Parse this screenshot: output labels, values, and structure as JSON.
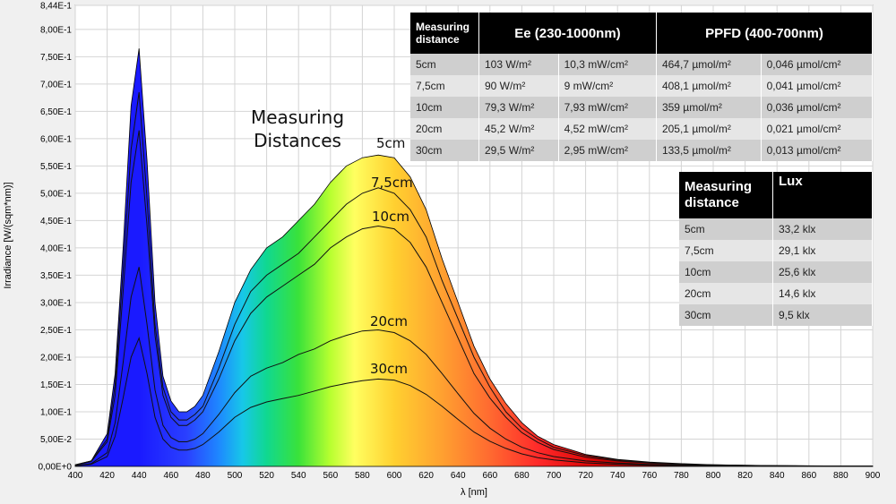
{
  "chart_data": {
    "type": "area",
    "xlabel": "λ [nm]",
    "ylabel": "Irradiance [W/(sqm*nm)]",
    "xlim": [
      400,
      900
    ],
    "ylim": [
      0,
      0.844
    ],
    "grid": true,
    "x_ticks": [
      "400",
      "420",
      "440",
      "460",
      "480",
      "500",
      "520",
      "540",
      "560",
      "580",
      "600",
      "620",
      "640",
      "660",
      "680",
      "700",
      "720",
      "740",
      "760",
      "780",
      "800",
      "820",
      "840",
      "860",
      "880",
      "900"
    ],
    "y_ticks": [
      "0,00E+0",
      "5,00E-2",
      "1,00E-1",
      "1,50E-1",
      "2,00E-1",
      "2,50E-1",
      "3,00E-1",
      "3,50E-1",
      "4,00E-1",
      "4,50E-1",
      "5,00E-1",
      "5,50E-1",
      "6,00E-1",
      "6,50E-1",
      "7,00E-1",
      "7,50E-1",
      "8,00E-1",
      "8,44E-1"
    ],
    "x": [
      400,
      410,
      420,
      425,
      430,
      435,
      440,
      445,
      450,
      455,
      460,
      465,
      470,
      475,
      480,
      490,
      500,
      510,
      520,
      530,
      540,
      550,
      560,
      570,
      580,
      590,
      600,
      610,
      620,
      630,
      640,
      650,
      660,
      670,
      680,
      690,
      700,
      720,
      740,
      760,
      780,
      800,
      820,
      840,
      860,
      880,
      900
    ],
    "series": [
      {
        "name": "5cm",
        "values": [
          0.003,
          0.01,
          0.06,
          0.17,
          0.4,
          0.66,
          0.765,
          0.56,
          0.3,
          0.165,
          0.12,
          0.1,
          0.1,
          0.11,
          0.13,
          0.21,
          0.3,
          0.36,
          0.4,
          0.42,
          0.45,
          0.48,
          0.52,
          0.55,
          0.565,
          0.57,
          0.565,
          0.53,
          0.47,
          0.38,
          0.3,
          0.22,
          0.16,
          0.115,
          0.08,
          0.055,
          0.04,
          0.022,
          0.013,
          0.008,
          0.005,
          0.003,
          0.002,
          0.0015,
          0.001,
          0.0008,
          0.0005
        ]
      },
      {
        "name": "7,5cm",
        "values": [
          0.003,
          0.01,
          0.05,
          0.15,
          0.36,
          0.58,
          0.685,
          0.49,
          0.26,
          0.145,
          0.1,
          0.085,
          0.085,
          0.095,
          0.11,
          0.18,
          0.26,
          0.32,
          0.35,
          0.37,
          0.39,
          0.42,
          0.45,
          0.48,
          0.5,
          0.51,
          0.5,
          0.47,
          0.42,
          0.34,
          0.27,
          0.2,
          0.145,
          0.1,
          0.07,
          0.05,
          0.035,
          0.02,
          0.012,
          0.007,
          0.004,
          0.003,
          0.002,
          0.0013,
          0.001,
          0.0007,
          0.0005
        ]
      },
      {
        "name": "10cm",
        "values": [
          0.002,
          0.009,
          0.045,
          0.13,
          0.32,
          0.52,
          0.615,
          0.44,
          0.24,
          0.13,
          0.09,
          0.075,
          0.075,
          0.085,
          0.1,
          0.16,
          0.23,
          0.28,
          0.31,
          0.33,
          0.35,
          0.37,
          0.4,
          0.42,
          0.435,
          0.44,
          0.435,
          0.41,
          0.365,
          0.3,
          0.235,
          0.17,
          0.125,
          0.09,
          0.062,
          0.044,
          0.031,
          0.017,
          0.01,
          0.006,
          0.0035,
          0.0025,
          0.0017,
          0.0012,
          0.0009,
          0.0006,
          0.0004
        ]
      },
      {
        "name": "20cm",
        "values": [
          0.001,
          0.005,
          0.025,
          0.08,
          0.19,
          0.31,
          0.365,
          0.26,
          0.14,
          0.075,
          0.053,
          0.045,
          0.045,
          0.05,
          0.06,
          0.095,
          0.135,
          0.165,
          0.18,
          0.19,
          0.205,
          0.215,
          0.23,
          0.24,
          0.248,
          0.25,
          0.245,
          0.23,
          0.205,
          0.17,
          0.133,
          0.097,
          0.07,
          0.05,
          0.035,
          0.025,
          0.018,
          0.01,
          0.006,
          0.0035,
          0.002,
          0.0014,
          0.001,
          0.0007,
          0.0005,
          0.0004,
          0.0003
        ]
      },
      {
        "name": "30cm",
        "values": [
          0.001,
          0.004,
          0.018,
          0.055,
          0.125,
          0.2,
          0.235,
          0.17,
          0.09,
          0.05,
          0.035,
          0.03,
          0.03,
          0.033,
          0.04,
          0.063,
          0.09,
          0.108,
          0.118,
          0.124,
          0.13,
          0.138,
          0.146,
          0.152,
          0.157,
          0.16,
          0.158,
          0.148,
          0.132,
          0.11,
          0.086,
          0.063,
          0.046,
          0.033,
          0.023,
          0.016,
          0.012,
          0.0065,
          0.004,
          0.0023,
          0.0013,
          0.0009,
          0.0006,
          0.0004,
          0.0003,
          0.0002,
          0.0002
        ]
      }
    ]
  },
  "annotation": {
    "line1": "Measuring",
    "line2": "Distances"
  },
  "ee_table": {
    "headers": [
      "Measuring distance",
      "Ee  (230-1000nm)",
      "PPFD (400-700nm)"
    ],
    "rows": [
      [
        "5cm",
        "103 W/m²",
        "10,3 mW/cm²",
        "464,7 µmol/m²",
        "0,046 µmol/cm²"
      ],
      [
        "7,5cm",
        "90 W/m²",
        "9 mW/cm²",
        "408,1 µmol/m²",
        "0,041 µmol/cm²"
      ],
      [
        "10cm",
        "79,3 W/m²",
        "7,93 mW/cm²",
        "359 µmol/m²",
        "0,036 µmol/cm²"
      ],
      [
        "20cm",
        "45,2 W/m²",
        "4,52 mW/cm²",
        "205,1 µmol/m²",
        "0,021 µmol/cm²"
      ],
      [
        "30cm",
        "29,5 W/m²",
        "2,95 mW/cm²",
        "133,5 µmol/m²",
        "0,013 µmol/cm²"
      ]
    ]
  },
  "lux_table": {
    "headers": [
      "Measuring distance",
      "Lux"
    ],
    "rows": [
      [
        "5cm",
        "33,2 klx"
      ],
      [
        "7,5cm",
        "29,1 klx"
      ],
      [
        "10cm",
        "25,6 klx"
      ],
      [
        "20cm",
        "14,6 klx"
      ],
      [
        "30cm",
        "9,5 klx"
      ]
    ]
  }
}
